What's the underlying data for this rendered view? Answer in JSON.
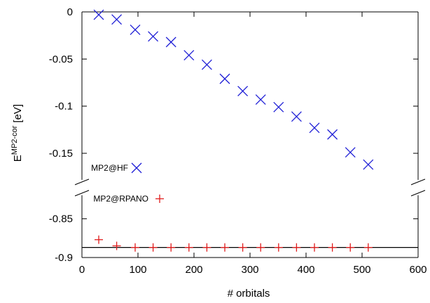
{
  "chart_data": {
    "type": "scatter",
    "title": "",
    "xlabel": "# orbitals",
    "ylabel": {
      "main": "E",
      "superscript": "MP2-cor",
      "unit": " [eV]"
    },
    "xlim": [
      0,
      600
    ],
    "x_ticks": [
      "0",
      "100",
      "200",
      "300",
      "400",
      "500",
      "600"
    ],
    "broken_y_axis": true,
    "upper_panel": {
      "ylim": [
        -0.17,
        0
      ],
      "y_ticks": [
        "0",
        "-0.05",
        "-0.1",
        "-0.15"
      ]
    },
    "lower_panel": {
      "ylim": [
        -0.9,
        -0.825
      ],
      "y_ticks": [
        "-0.85",
        "-0.9"
      ]
    },
    "reference_line": {
      "y": -0.887,
      "color": "#000000"
    },
    "series": [
      {
        "name": "MP2@HF",
        "marker": "x",
        "color": "#1f1fd6",
        "panel": "upper",
        "x": [
          30,
          62,
          95,
          127,
          159,
          191,
          223,
          255,
          287,
          319,
          351,
          383,
          415,
          447,
          479,
          511
        ],
        "y": [
          -0.003,
          -0.008,
          -0.019,
          -0.026,
          -0.032,
          -0.046,
          -0.056,
          -0.071,
          -0.084,
          -0.093,
          -0.101,
          -0.111,
          -0.123,
          -0.13,
          -0.149,
          -0.162
        ]
      },
      {
        "name": "MP2@RPANO",
        "marker": "+",
        "color": "#e01b1b",
        "panel": "lower",
        "x": [
          30,
          62,
          95,
          127,
          159,
          191,
          223,
          255,
          287,
          319,
          351,
          383,
          415,
          447,
          479,
          511
        ],
        "y": [
          -0.877,
          -0.885,
          -0.887,
          -0.887,
          -0.887,
          -0.887,
          -0.887,
          -0.887,
          -0.887,
          -0.887,
          -0.887,
          -0.887,
          -0.887,
          -0.887,
          -0.887,
          -0.887
        ]
      }
    ],
    "legend": [
      {
        "label": "MP2@HF",
        "marker": "x",
        "color": "#1f1fd6"
      },
      {
        "label": "MP2@RPANO",
        "marker": "+",
        "color": "#e01b1b"
      }
    ],
    "legend_position": "left, near axis break"
  }
}
